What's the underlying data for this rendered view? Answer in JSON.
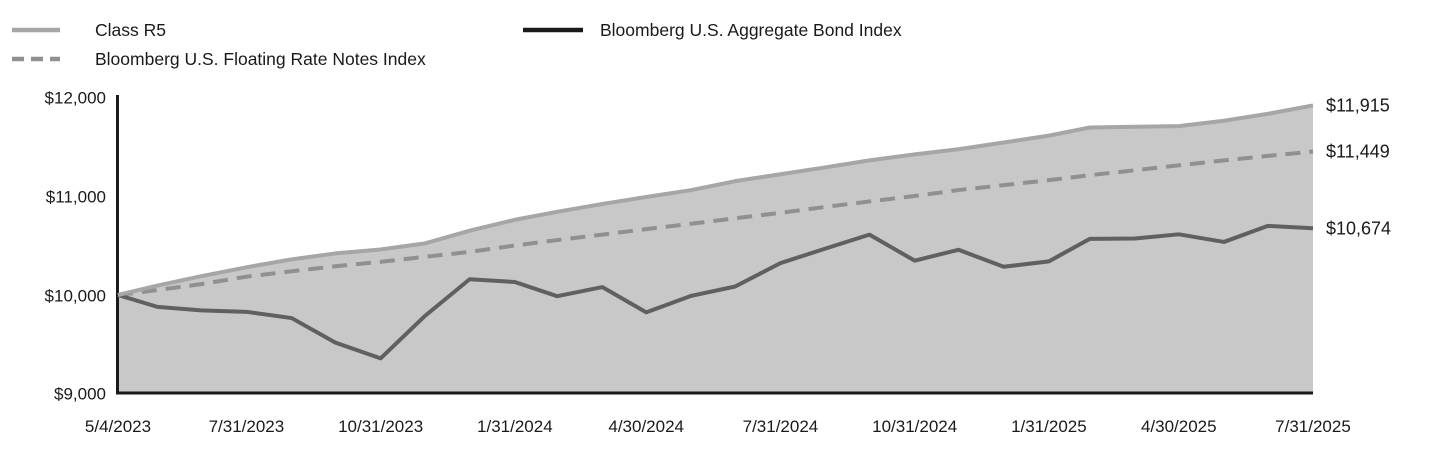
{
  "legend": {
    "items": [
      {
        "id": "class_r5",
        "label": "Class R5",
        "style": "solid",
        "color": "#a6a6a6"
      },
      {
        "id": "agg_bond",
        "label": "Bloomberg U.S. Aggregate Bond Index",
        "style": "solid",
        "color": "#1a1a1a"
      },
      {
        "id": "frn",
        "label": "Bloomberg U.S. Floating Rate Notes Index",
        "style": "dashed",
        "color": "#909090"
      }
    ]
  },
  "chart_data": {
    "type": "area",
    "title": "",
    "xlabel": "",
    "ylabel": "",
    "ylim": [
      9000,
      12000
    ],
    "grid": false,
    "legend_position": "top-left",
    "x": [
      "5/4/2023",
      "5/31/2023",
      "6/30/2023",
      "7/31/2023",
      "8/31/2023",
      "9/30/2023",
      "10/31/2023",
      "11/30/2023",
      "12/31/2023",
      "1/31/2024",
      "2/29/2024",
      "3/31/2024",
      "4/30/2024",
      "5/31/2024",
      "6/30/2024",
      "7/31/2024",
      "8/31/2024",
      "9/30/2024",
      "10/31/2024",
      "11/30/2024",
      "12/31/2024",
      "1/31/2025",
      "2/28/2025",
      "3/31/2025",
      "4/30/2025",
      "5/31/2025",
      "6/30/2025",
      "7/31/2025"
    ],
    "x_tick_labels": [
      "5/4/2023",
      "7/31/2023",
      "10/31/2023",
      "1/31/2024",
      "4/30/2024",
      "7/31/2024",
      "10/31/2024",
      "1/31/2025",
      "4/30/2025",
      "7/31/2025"
    ],
    "y_ticks": [
      {
        "value": 9000,
        "label": "$9,000"
      },
      {
        "value": 10000,
        "label": "$10,000"
      },
      {
        "value": 11000,
        "label": "$11,000"
      },
      {
        "value": 12000,
        "label": "$12,000"
      }
    ],
    "series": [
      {
        "name": "Class R5",
        "kind": "area",
        "line_color": "#a6a6a6",
        "fill_color": "#c8c8c8",
        "dashed": false,
        "end_label": "$11,915",
        "values": [
          10000,
          10095,
          10190,
          10280,
          10360,
          10420,
          10460,
          10520,
          10650,
          10760,
          10840,
          10920,
          10990,
          11060,
          11150,
          11220,
          11290,
          11360,
          11420,
          11472,
          11540,
          11610,
          11692,
          11700,
          11706,
          11760,
          11830,
          11915
        ]
      },
      {
        "name": "Bloomberg U.S. Floating Rate Notes Index",
        "kind": "line",
        "line_color": "#909090",
        "dashed": true,
        "end_label": "$11,449",
        "values": [
          10000,
          10050,
          10110,
          10185,
          10240,
          10290,
          10335,
          10385,
          10435,
          10500,
          10555,
          10610,
          10665,
          10720,
          10775,
          10830,
          10890,
          10945,
          11000,
          11060,
          11110,
          11160,
          11210,
          11260,
          11310,
          11360,
          11405,
          11449
        ]
      },
      {
        "name": "Bloomberg U.S. Aggregate Bond Index",
        "kind": "line",
        "line_color": "#606060",
        "dashed": false,
        "end_label": "$10,674",
        "values": [
          10000,
          9880,
          9845,
          9830,
          9767,
          9519,
          9360,
          9784,
          10159,
          10131,
          9988,
          10080,
          9825,
          9992,
          10086,
          10322,
          10470,
          10610,
          10347,
          10457,
          10285,
          10340,
          10567,
          10571,
          10613,
          10536,
          10698,
          10674
        ]
      }
    ],
    "axis_color": "#1a1a1a",
    "label_color": "#1a1a1a"
  }
}
